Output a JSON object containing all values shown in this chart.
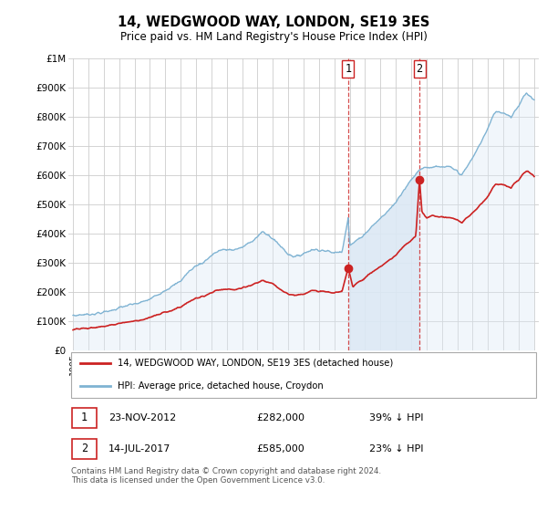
{
  "title": "14, WEDGWOOD WAY, LONDON, SE19 3ES",
  "subtitle": "Price paid vs. HM Land Registry's House Price Index (HPI)",
  "yticks": [
    0,
    100000,
    200000,
    300000,
    400000,
    500000,
    600000,
    700000,
    800000,
    900000,
    1000000
  ],
  "ytick_labels": [
    "£0",
    "£100K",
    "£200K",
    "£300K",
    "£400K",
    "£500K",
    "£600K",
    "£700K",
    "£800K",
    "£900K",
    "£1M"
  ],
  "xlim_start": 1994.7,
  "xlim_end": 2025.3,
  "ylim_min": 0,
  "ylim_max": 1000000,
  "sale1_x": 2012.9,
  "sale1_y": 282000,
  "sale2_x": 2017.54,
  "sale2_y": 585000,
  "legend_line1": "14, WEDGWOOD WAY, LONDON, SE19 3ES (detached house)",
  "legend_line2": "HPI: Average price, detached house, Croydon",
  "footer": "Contains HM Land Registry data © Crown copyright and database right 2024.\nThis data is licensed under the Open Government Licence v3.0.",
  "hpi_fill_color": "#dce9f5",
  "hpi_line_color": "#7fb3d3",
  "sale_color": "#cc2222",
  "background_color": "#ffffff",
  "grid_color": "#cccccc",
  "shade_between_color": "#dce9f5"
}
